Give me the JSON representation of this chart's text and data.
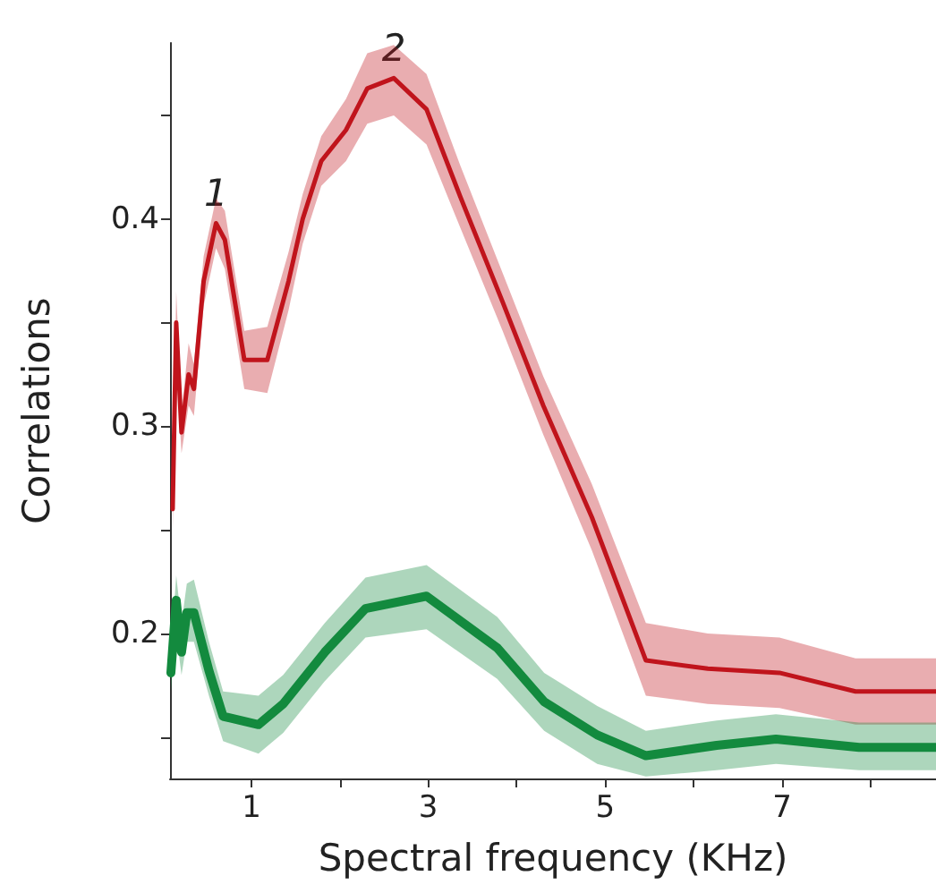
{
  "chart_data": {
    "type": "line",
    "xlabel": "Spectral frequency (KHz)",
    "ylabel": "Correlations",
    "xlim": [
      0.08,
      8.74
    ],
    "xticks": [
      1,
      {
        "value": 2,
        "label": null
      },
      3,
      {
        "value": 4,
        "label": null
      },
      5,
      {
        "value": 6,
        "label": null
      },
      7,
      {
        "value": 8,
        "label": null
      }
    ],
    "ylim": [
      0.13,
      0.485
    ],
    "yticks": [
      {
        "value": 0.15,
        "label": null
      },
      0.2,
      {
        "value": 0.25,
        "label": null
      },
      0.3,
      {
        "value": 0.35,
        "label": null
      },
      0.4,
      {
        "value": 0.45,
        "label": null
      }
    ],
    "grid": false,
    "marker": "none",
    "line_style": "solid",
    "annotations": [
      {
        "text": "1",
        "x": 0.6,
        "y": 0.398
      },
      {
        "text": "2",
        "x": 2.61,
        "y": 0.468
      }
    ],
    "series": [
      {
        "color": "#c0141c",
        "x": [
          0.11,
          0.15,
          0.21,
          0.29,
          0.35,
          0.46,
          0.6,
          0.7,
          0.92,
          1.18,
          1.42,
          1.58,
          1.79,
          2.07,
          2.31,
          2.61,
          2.98,
          3.36,
          3.84,
          4.3,
          4.85,
          5.46,
          6.16,
          6.97,
          7.83,
          8.74
        ],
        "values": [
          0.26,
          0.35,
          0.297,
          0.325,
          0.318,
          0.37,
          0.398,
          0.39,
          0.332,
          0.332,
          0.37,
          0.4,
          0.428,
          0.443,
          0.463,
          0.468,
          0.453,
          0.411,
          0.36,
          0.31,
          0.256,
          0.187,
          0.183,
          0.181,
          0.172,
          0.172
        ],
        "lower": [
          0.25,
          0.33,
          0.287,
          0.31,
          0.305,
          0.358,
          0.386,
          0.376,
          0.318,
          0.316,
          0.356,
          0.388,
          0.416,
          0.428,
          0.446,
          0.45,
          0.436,
          0.396,
          0.346,
          0.296,
          0.24,
          0.17,
          0.166,
          0.164,
          0.156,
          0.156
        ],
        "upper": [
          0.27,
          0.365,
          0.307,
          0.34,
          0.33,
          0.382,
          0.41,
          0.404,
          0.346,
          0.348,
          0.384,
          0.412,
          0.44,
          0.458,
          0.48,
          0.484,
          0.47,
          0.426,
          0.374,
          0.324,
          0.272,
          0.205,
          0.2,
          0.198,
          0.188,
          0.188
        ]
      },
      {
        "color": "#138a3e",
        "x": [
          0.09,
          0.15,
          0.21,
          0.27,
          0.35,
          0.52,
          0.68,
          1.08,
          1.36,
          1.83,
          2.29,
          2.98,
          3.78,
          4.31,
          4.91,
          5.46,
          6.26,
          6.93,
          7.87,
          8.74
        ],
        "values": [
          0.181,
          0.216,
          0.191,
          0.21,
          0.21,
          0.182,
          0.16,
          0.156,
          0.166,
          0.191,
          0.212,
          0.218,
          0.193,
          0.167,
          0.151,
          0.141,
          0.146,
          0.149,
          0.145,
          0.145
        ],
        "lower": [
          0.172,
          0.2,
          0.18,
          0.196,
          0.196,
          0.17,
          0.148,
          0.142,
          0.152,
          0.177,
          0.198,
          0.202,
          0.178,
          0.153,
          0.137,
          0.131,
          0.134,
          0.137,
          0.134,
          0.134
        ],
        "upper": [
          0.19,
          0.228,
          0.205,
          0.224,
          0.226,
          0.196,
          0.172,
          0.17,
          0.18,
          0.205,
          0.227,
          0.233,
          0.208,
          0.181,
          0.165,
          0.153,
          0.158,
          0.161,
          0.157,
          0.157
        ]
      }
    ]
  }
}
